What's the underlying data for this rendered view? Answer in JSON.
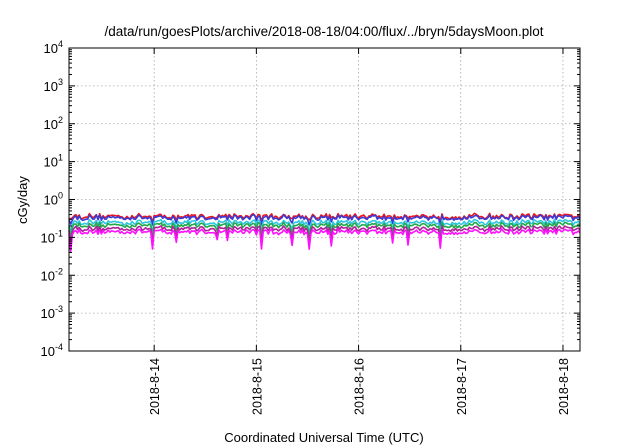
{
  "chart_data": {
    "type": "line",
    "title": "/data/run/goesPlots/archive/2018-08-18/04:00/flux/../bryn/5daysMoon.plot",
    "xlabel": "Coordinated Universal Time (UTC)",
    "ylabel": "cGy/day",
    "yscale": "log",
    "ylim": [
      0.0001,
      10000
    ],
    "yticks": [
      {
        "base": "10",
        "exp": "-4",
        "value": 0.0001
      },
      {
        "base": "10",
        "exp": "-3",
        "value": 0.001
      },
      {
        "base": "10",
        "exp": "-2",
        "value": 0.01
      },
      {
        "base": "10",
        "exp": "-1",
        "value": 0.1
      },
      {
        "base": "10",
        "exp": "0",
        "value": 1
      },
      {
        "base": "10",
        "exp": "1",
        "value": 10
      },
      {
        "base": "10",
        "exp": "2",
        "value": 100
      },
      {
        "base": "10",
        "exp": "3",
        "value": 1000
      },
      {
        "base": "10",
        "exp": "4",
        "value": 10000
      }
    ],
    "xlim": [
      "2018-08-13T04:00",
      "2018-08-18T04:00"
    ],
    "xticks": [
      "2018-8-14",
      "2018-8-15",
      "2018-8-16",
      "2018-8-17",
      "2018-8-18"
    ],
    "grid": true,
    "series": [
      {
        "color": "#e8171f",
        "base_value": 0.36
      },
      {
        "color": "#3a3ad8",
        "base_value": 0.33
      },
      {
        "color": "#2ec7e0",
        "base_value": 0.25
      },
      {
        "color": "#22a84a",
        "base_value": 0.21
      },
      {
        "color": "#b0229b",
        "base_value": 0.17
      },
      {
        "color": "#ff10ff",
        "base_value": 0.14
      }
    ]
  }
}
